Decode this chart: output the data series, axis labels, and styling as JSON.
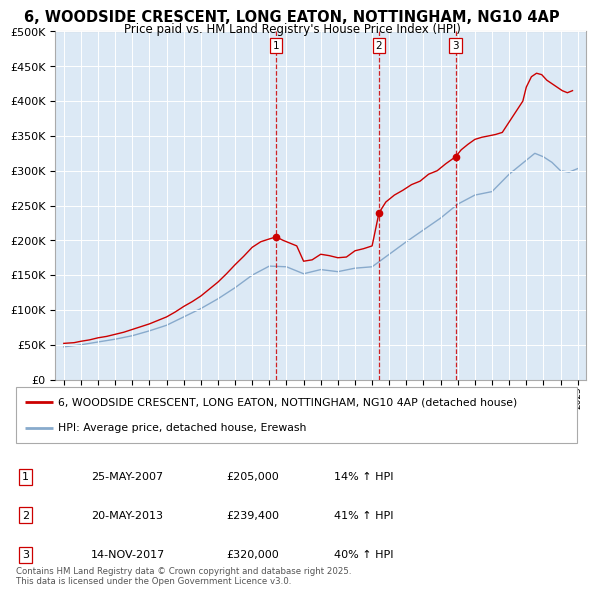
{
  "title": "6, WOODSIDE CRESCENT, LONG EATON, NOTTINGHAM, NG10 4AP",
  "subtitle": "Price paid vs. HM Land Registry's House Price Index (HPI)",
  "legend_line1": "6, WOODSIDE CRESCENT, LONG EATON, NOTTINGHAM, NG10 4AP (detached house)",
  "legend_line2": "HPI: Average price, detached house, Erewash",
  "sale_dates": [
    "25-MAY-2007",
    "20-MAY-2013",
    "14-NOV-2017"
  ],
  "sale_prices": [
    205000,
    239400,
    320000
  ],
  "sale_hpi_pct": [
    "14% ↑ HPI",
    "41% ↑ HPI",
    "40% ↑ HPI"
  ],
  "sale_years": [
    2007.4,
    2013.4,
    2017.87
  ],
  "vline_color": "#cc0000",
  "plot_bg": "#dce9f5",
  "red_line_color": "#cc0000",
  "blue_line_color": "#88aacc",
  "ylim": [
    0,
    500000
  ],
  "xlim_start": 1994.5,
  "xlim_end": 2025.5,
  "footer": "Contains HM Land Registry data © Crown copyright and database right 2025.\nThis data is licensed under the Open Government Licence v3.0.",
  "red_x": [
    1995.0,
    1995.3,
    1995.6,
    1996.0,
    1996.5,
    1997.0,
    1997.5,
    1998.0,
    1998.5,
    1999.0,
    1999.5,
    2000.0,
    2000.5,
    2001.0,
    2001.5,
    2002.0,
    2002.5,
    2003.0,
    2003.5,
    2004.0,
    2004.5,
    2005.0,
    2005.5,
    2006.0,
    2006.5,
    2007.0,
    2007.4,
    2007.8,
    2008.2,
    2008.6,
    2009.0,
    2009.5,
    2010.0,
    2010.5,
    2011.0,
    2011.5,
    2012.0,
    2012.5,
    2013.0,
    2013.4,
    2013.8,
    2014.3,
    2014.8,
    2015.3,
    2015.8,
    2016.3,
    2016.8,
    2017.3,
    2017.87,
    2018.2,
    2018.6,
    2019.0,
    2019.4,
    2019.8,
    2020.2,
    2020.6,
    2021.0,
    2021.4,
    2021.8,
    2022.0,
    2022.3,
    2022.6,
    2022.9,
    2023.2,
    2023.5,
    2023.8,
    2024.1,
    2024.4,
    2024.7
  ],
  "red_y": [
    52000,
    52500,
    53000,
    55000,
    57000,
    60000,
    62000,
    65000,
    68000,
    72000,
    76000,
    80000,
    85000,
    90000,
    97000,
    105000,
    112000,
    120000,
    130000,
    140000,
    152000,
    165000,
    177000,
    190000,
    198000,
    202000,
    205000,
    200000,
    196000,
    192000,
    170000,
    172000,
    180000,
    178000,
    175000,
    176000,
    185000,
    188000,
    192000,
    239400,
    255000,
    265000,
    272000,
    280000,
    285000,
    295000,
    300000,
    310000,
    320000,
    330000,
    338000,
    345000,
    348000,
    350000,
    352000,
    355000,
    370000,
    385000,
    400000,
    420000,
    435000,
    440000,
    438000,
    430000,
    425000,
    420000,
    415000,
    412000,
    415000
  ],
  "blue_x": [
    1995.0,
    1996.0,
    1997.0,
    1998.0,
    1999.0,
    2000.0,
    2001.0,
    2002.0,
    2003.0,
    2004.0,
    2005.0,
    2006.0,
    2007.0,
    2008.0,
    2009.0,
    2010.0,
    2011.0,
    2012.0,
    2013.0,
    2014.0,
    2015.0,
    2016.0,
    2017.0,
    2018.0,
    2019.0,
    2020.0,
    2021.0,
    2022.0,
    2022.5,
    2023.0,
    2023.5,
    2024.0,
    2024.5,
    2025.0
  ],
  "blue_y": [
    47000,
    50000,
    54000,
    58000,
    63000,
    70000,
    78000,
    90000,
    102000,
    116000,
    132000,
    150000,
    163000,
    162000,
    152000,
    158000,
    155000,
    160000,
    162000,
    180000,
    198000,
    215000,
    232000,
    252000,
    265000,
    270000,
    295000,
    315000,
    325000,
    320000,
    312000,
    300000,
    298000,
    303000
  ]
}
